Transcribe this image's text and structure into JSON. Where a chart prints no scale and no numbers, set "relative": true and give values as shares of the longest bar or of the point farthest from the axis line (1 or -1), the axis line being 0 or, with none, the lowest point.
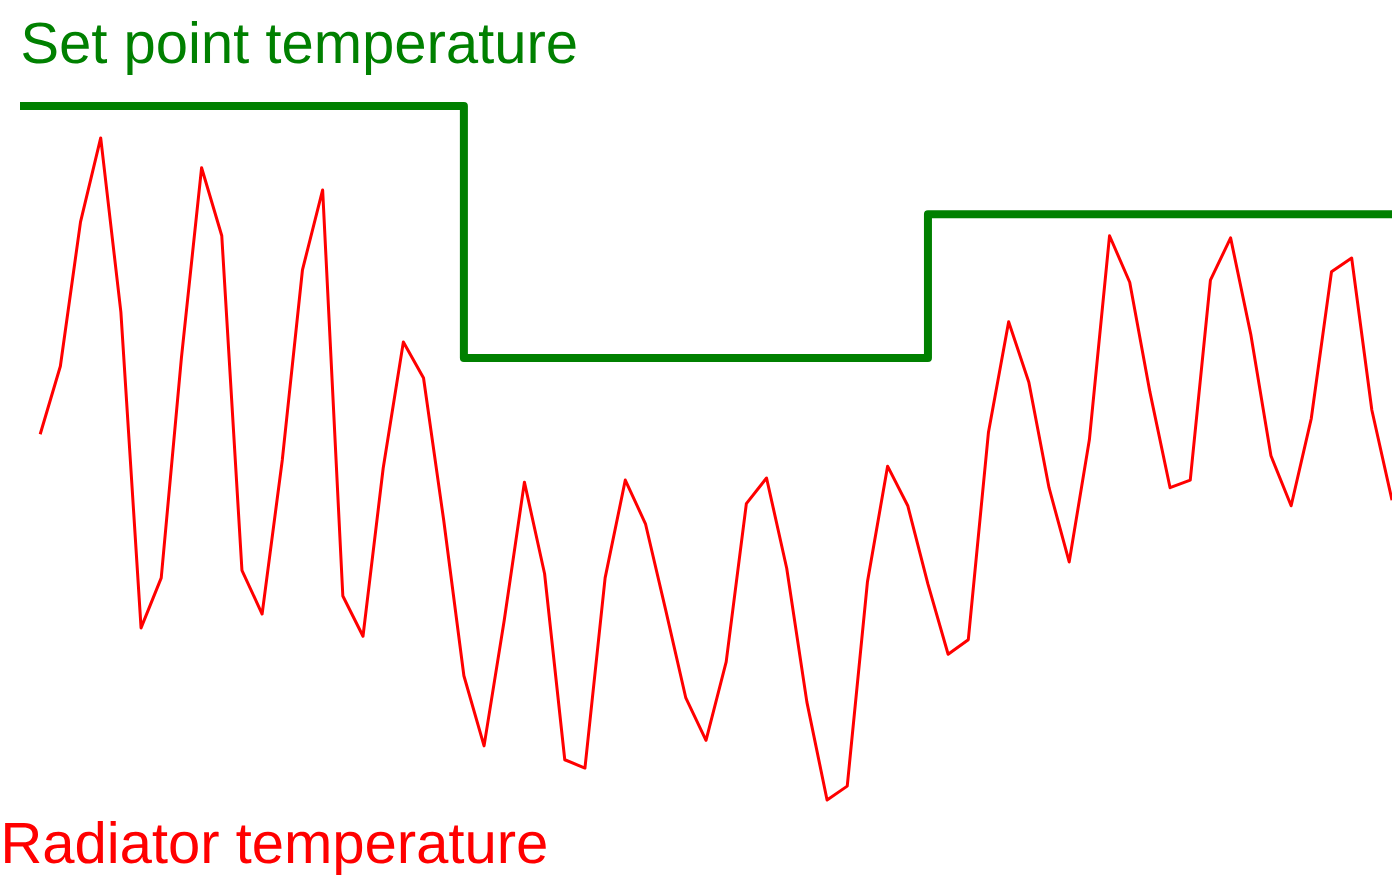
{
  "chart_data": {
    "type": "line",
    "relative": true,
    "marker": "none",
    "line_style": "solid",
    "categories": [
      null,
      null,
      null,
      null,
      null,
      null,
      null,
      null,
      null,
      null,
      null,
      null,
      null,
      null,
      null,
      null,
      null,
      null,
      null,
      null,
      null,
      null,
      null,
      null,
      null,
      null,
      null,
      null,
      null,
      null,
      null,
      null,
      null,
      null,
      null,
      null,
      null,
      null,
      null,
      null,
      null,
      null,
      null,
      null,
      null,
      null,
      null,
      null,
      null,
      null,
      null,
      null,
      null,
      null,
      null,
      null,
      null,
      null,
      null,
      null,
      null,
      null,
      null,
      null,
      null,
      null,
      null,
      null,
      null
    ],
    "series": [
      {
        "name": "Set point temperature",
        "type": "step",
        "color": "#008000",
        "values": [
          1,
          1,
          1,
          1,
          1,
          1,
          1,
          1,
          1,
          1,
          1,
          1,
          1,
          1,
          1,
          1,
          1,
          1,
          1,
          1,
          1,
          1,
          0.637,
          0.637,
          0.637,
          0.637,
          0.637,
          0.637,
          0.637,
          0.637,
          0.637,
          0.637,
          0.637,
          0.637,
          0.637,
          0.637,
          0.637,
          0.637,
          0.637,
          0.637,
          0.637,
          0.637,
          0.637,
          0.637,
          0.637,
          0.844,
          0.844,
          0.844,
          0.844,
          0.844,
          0.844,
          0.844,
          0.844,
          0.844,
          0.844,
          0.844,
          0.844,
          0.844,
          0.844,
          0.844,
          0.844,
          0.844,
          0.844,
          0.844,
          0.844,
          0.844,
          0.844,
          0.844,
          0.844
        ]
      },
      {
        "name": "Radiator temperature",
        "color": "#ff0000",
        "values": [
          null,
          0.527,
          0.625,
          0.833,
          0.954,
          0.703,
          0.248,
          0.32,
          0.637,
          0.911,
          0.813,
          0.331,
          0.268,
          0.49,
          0.764,
          0.879,
          0.294,
          0.236,
          0.478,
          0.66,
          0.608,
          0.403,
          0.179,
          0.078,
          0.259,
          0.458,
          0.326,
          0.058,
          0.046,
          0.32,
          0.461,
          0.398,
          0.274,
          0.147,
          0.086,
          0.199,
          0.427,
          0.464,
          0.334,
          0.141,
          0,
          0.02,
          0.314,
          0.481,
          0.424,
          0.311,
          0.21,
          0.231,
          0.53,
          0.689,
          0.602,
          0.45,
          0.343,
          0.519,
          0.813,
          0.746,
          0.588,
          0.45,
          0.461,
          0.749,
          0.81,
          0.671,
          0.496,
          0.424,
          0.55,
          0.761,
          0.781,
          0.562,
          0.432
        ]
      }
    ]
  }
}
